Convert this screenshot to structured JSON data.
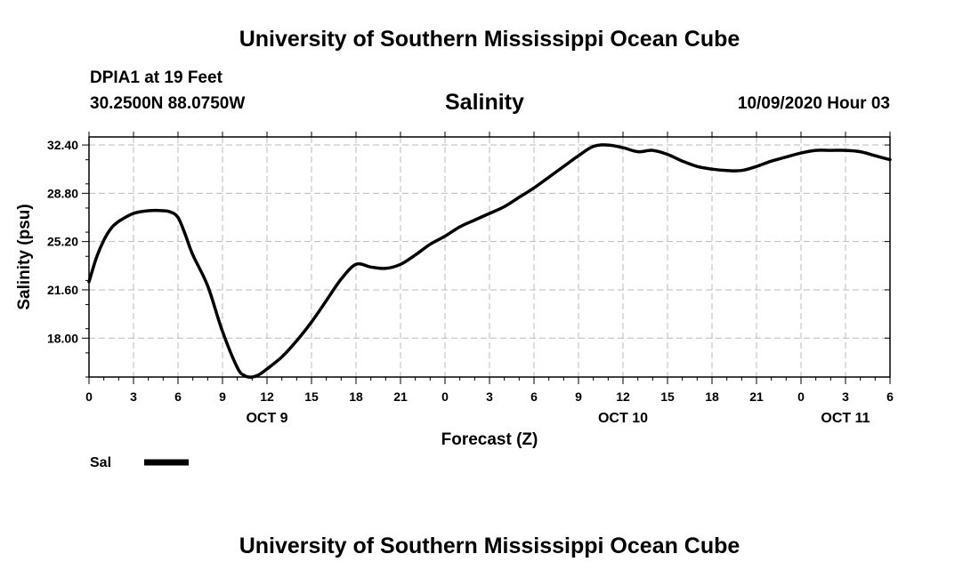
{
  "header": {
    "title": "University of Southern Mississippi Ocean Cube",
    "station": "DPIA1 at 19 Feet",
    "coords": "30.2500N 88.0750W",
    "run_time": "10/09/2020 Hour 03"
  },
  "footer": {
    "title": "University of Southern Mississippi Ocean Cube"
  },
  "chart_data": {
    "type": "line",
    "title": "Salinity",
    "xlabel": "Forecast (Z)",
    "ylabel": "Salinity (psu)",
    "ylim": [
      15.1,
      33.0
    ],
    "xlim": [
      0,
      54
    ],
    "x_unit": "forecast hours from 10/09/2020 00Z",
    "yticks": [
      "18.00",
      "21.60",
      "25.20",
      "28.80",
      "32.40"
    ],
    "ytick_values": [
      18.0,
      21.6,
      25.2,
      28.8,
      32.4
    ],
    "xtick_labels": [
      "0",
      "3",
      "6",
      "9",
      "12",
      "15",
      "18",
      "21",
      "0",
      "3",
      "6",
      "9",
      "12",
      "15",
      "18",
      "21",
      "0",
      "3",
      "6"
    ],
    "day_labels": [
      {
        "label": "OCT 9",
        "hour": 12
      },
      {
        "label": "OCT 10",
        "hour": 36
      },
      {
        "label": "OCT 11",
        "hour": 51
      }
    ],
    "grid": true,
    "legend_position": "bottom-left",
    "series": [
      {
        "name": "Sal",
        "color": "#000000",
        "x": [
          0,
          0.5,
          1,
          1.5,
          2,
          3,
          4,
          5,
          5.5,
          6,
          6.5,
          7,
          8,
          9,
          10,
          10.5,
          11,
          11.5,
          12,
          13,
          14,
          15,
          16,
          17,
          18,
          19,
          20,
          21,
          22,
          23,
          24,
          25,
          26,
          27,
          28,
          29,
          30,
          31,
          32,
          33,
          34,
          35,
          36,
          37,
          38,
          39,
          40,
          41,
          42,
          43,
          44,
          45,
          46,
          47,
          48,
          49,
          50,
          51,
          52,
          53,
          54
        ],
        "values": [
          22.2,
          24.0,
          25.3,
          26.2,
          26.7,
          27.3,
          27.5,
          27.5,
          27.4,
          27.0,
          25.7,
          24.2,
          21.9,
          18.5,
          15.8,
          15.2,
          15.1,
          15.3,
          15.7,
          16.6,
          17.8,
          19.2,
          20.8,
          22.4,
          23.5,
          23.3,
          23.2,
          23.5,
          24.2,
          25.0,
          25.6,
          26.3,
          26.8,
          27.3,
          27.8,
          28.5,
          29.2,
          30.0,
          30.8,
          31.6,
          32.3,
          32.4,
          32.2,
          31.9,
          32.0,
          31.7,
          31.2,
          30.8,
          30.6,
          30.5,
          30.5,
          30.8,
          31.2,
          31.5,
          31.8,
          32.0,
          32.0,
          32.0,
          31.9,
          31.6,
          31.3
        ]
      }
    ]
  }
}
